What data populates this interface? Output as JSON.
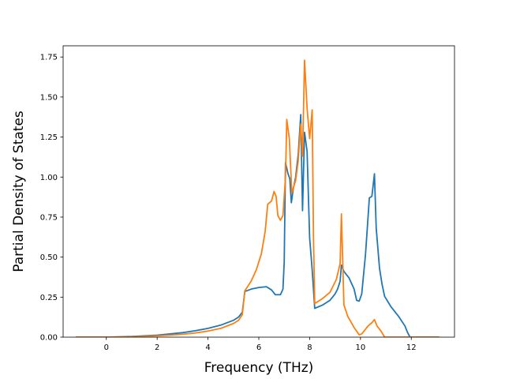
{
  "chart_data": {
    "type": "line",
    "title": "",
    "xlabel": "Frequency (THz)",
    "ylabel": "Partial Density of States",
    "xlim": [
      -1.7,
      13.7
    ],
    "ylim": [
      0.0,
      1.82
    ],
    "xticks": [
      0,
      2,
      4,
      6,
      8,
      10,
      12
    ],
    "xtick_labels": [
      "0",
      "2",
      "4",
      "6",
      "8",
      "10",
      "12"
    ],
    "yticks": [
      0.0,
      0.25,
      0.5,
      0.75,
      1.0,
      1.25,
      1.5,
      1.75
    ],
    "ytick_labels": [
      "0.00",
      "0.25",
      "0.50",
      "0.75",
      "1.00",
      "1.25",
      "1.50",
      "1.75"
    ],
    "grid": false,
    "legend": "none",
    "series": [
      {
        "color": "#1f77b4",
        "points": [
          [
            -1.2,
            0.0
          ],
          [
            0.0,
            0.0
          ],
          [
            1.0,
            0.004
          ],
          [
            2.0,
            0.012
          ],
          [
            3.0,
            0.028
          ],
          [
            3.5,
            0.04
          ],
          [
            4.0,
            0.055
          ],
          [
            4.5,
            0.075
          ],
          [
            5.0,
            0.105
          ],
          [
            5.2,
            0.125
          ],
          [
            5.35,
            0.155
          ],
          [
            5.45,
            0.285
          ],
          [
            5.7,
            0.3
          ],
          [
            6.0,
            0.31
          ],
          [
            6.3,
            0.315
          ],
          [
            6.5,
            0.295
          ],
          [
            6.65,
            0.265
          ],
          [
            6.85,
            0.265
          ],
          [
            6.95,
            0.3
          ],
          [
            7.0,
            0.47
          ],
          [
            7.05,
            1.09
          ],
          [
            7.15,
            1.02
          ],
          [
            7.22,
            0.99
          ],
          [
            7.28,
            0.84
          ],
          [
            7.35,
            0.92
          ],
          [
            7.45,
            1.0
          ],
          [
            7.55,
            1.14
          ],
          [
            7.65,
            1.39
          ],
          [
            7.72,
            0.79
          ],
          [
            7.8,
            1.28
          ],
          [
            7.9,
            1.16
          ],
          [
            8.0,
            0.62
          ],
          [
            8.1,
            0.42
          ],
          [
            8.2,
            0.18
          ],
          [
            8.5,
            0.2
          ],
          [
            8.8,
            0.23
          ],
          [
            9.0,
            0.27
          ],
          [
            9.1,
            0.3
          ],
          [
            9.2,
            0.35
          ],
          [
            9.25,
            0.45
          ],
          [
            9.35,
            0.41
          ],
          [
            9.55,
            0.37
          ],
          [
            9.75,
            0.3
          ],
          [
            9.85,
            0.23
          ],
          [
            9.95,
            0.225
          ],
          [
            10.05,
            0.27
          ],
          [
            10.2,
            0.52
          ],
          [
            10.35,
            0.87
          ],
          [
            10.45,
            0.88
          ],
          [
            10.55,
            1.02
          ],
          [
            10.62,
            0.68
          ],
          [
            10.75,
            0.43
          ],
          [
            10.85,
            0.33
          ],
          [
            10.95,
            0.255
          ],
          [
            11.2,
            0.19
          ],
          [
            11.5,
            0.13
          ],
          [
            11.75,
            0.07
          ],
          [
            11.85,
            0.03
          ],
          [
            11.95,
            0.0
          ],
          [
            13.1,
            0.0
          ]
        ]
      },
      {
        "color": "#ff7f0e",
        "points": [
          [
            -1.2,
            0.0
          ],
          [
            0.0,
            0.0
          ],
          [
            1.0,
            0.002
          ],
          [
            2.0,
            0.008
          ],
          [
            3.0,
            0.018
          ],
          [
            3.5,
            0.026
          ],
          [
            4.0,
            0.038
          ],
          [
            4.5,
            0.055
          ],
          [
            5.0,
            0.085
          ],
          [
            5.2,
            0.105
          ],
          [
            5.35,
            0.14
          ],
          [
            5.45,
            0.29
          ],
          [
            5.7,
            0.35
          ],
          [
            5.9,
            0.42
          ],
          [
            6.1,
            0.52
          ],
          [
            6.25,
            0.66
          ],
          [
            6.35,
            0.83
          ],
          [
            6.5,
            0.85
          ],
          [
            6.6,
            0.91
          ],
          [
            6.68,
            0.88
          ],
          [
            6.75,
            0.76
          ],
          [
            6.85,
            0.73
          ],
          [
            6.95,
            0.76
          ],
          [
            7.05,
            1.0
          ],
          [
            7.1,
            1.36
          ],
          [
            7.2,
            1.24
          ],
          [
            7.3,
            0.9
          ],
          [
            7.45,
            0.98
          ],
          [
            7.55,
            1.1
          ],
          [
            7.65,
            1.33
          ],
          [
            7.72,
            1.13
          ],
          [
            7.8,
            1.73
          ],
          [
            7.9,
            1.43
          ],
          [
            8.0,
            1.24
          ],
          [
            8.1,
            1.42
          ],
          [
            8.15,
            0.64
          ],
          [
            8.2,
            0.21
          ],
          [
            8.5,
            0.24
          ],
          [
            8.8,
            0.28
          ],
          [
            9.05,
            0.36
          ],
          [
            9.2,
            0.46
          ],
          [
            9.25,
            0.77
          ],
          [
            9.35,
            0.2
          ],
          [
            9.5,
            0.13
          ],
          [
            9.75,
            0.06
          ],
          [
            9.95,
            0.015
          ],
          [
            10.05,
            0.02
          ],
          [
            10.3,
            0.07
          ],
          [
            10.45,
            0.09
          ],
          [
            10.55,
            0.11
          ],
          [
            10.65,
            0.07
          ],
          [
            10.8,
            0.04
          ],
          [
            10.95,
            0.0
          ],
          [
            13.1,
            0.0
          ]
        ]
      }
    ]
  }
}
